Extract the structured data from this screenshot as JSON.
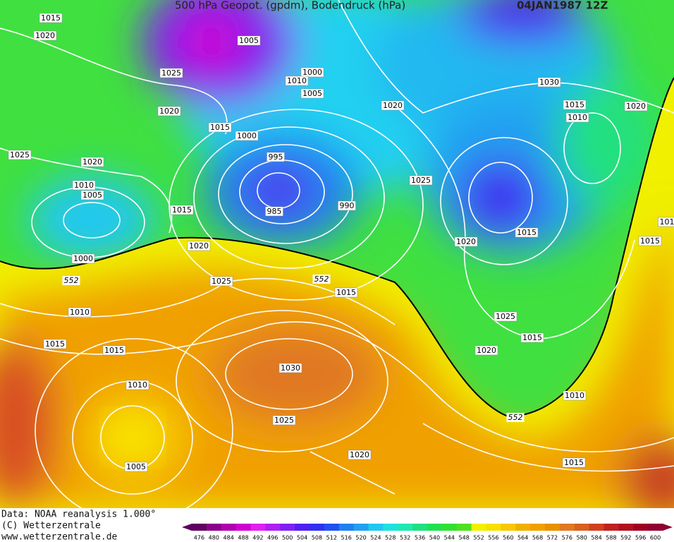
{
  "header": {
    "title": "500 hPa Geopot. (gpdm), Bodendruck (hPa)",
    "date": "04JAN1987 12Z"
  },
  "isobar_labels": [
    "1015",
    "1020",
    "1005",
    "1025",
    "1000",
    "1010",
    "1005",
    "1020",
    "1020",
    "1030",
    "1015",
    "1010",
    "1020",
    "1015",
    "1000",
    "1025",
    "1020",
    "995",
    "1010",
    "1005",
    "1025",
    "985",
    "990",
    "1015",
    "1015",
    "1020",
    "1020",
    "1015",
    "101",
    "1000",
    "1025",
    "1015",
    "1010",
    "1025",
    "1015",
    "1015",
    "1015",
    "1020",
    "1030",
    "1010",
    "1010",
    "1025",
    "1020",
    "1015",
    "1005"
  ],
  "contour_labels": [
    "552",
    "552",
    "552"
  ],
  "footer": [
    "Data: NOAA reanalysis 1.000°",
    "(C) Wetterzentrale",
    "www.wetterzentrale.de"
  ],
  "colorbar": {
    "labels": [
      476,
      480,
      484,
      488,
      492,
      496,
      500,
      504,
      508,
      512,
      516,
      520,
      524,
      528,
      532,
      536,
      540,
      544,
      548,
      552,
      556,
      560,
      564,
      568,
      572,
      576,
      580,
      584,
      588,
      592,
      596,
      600
    ],
    "colors": [
      "#600060",
      "#8a008a",
      "#b000b0",
      "#d000d0",
      "#e020f0",
      "#b020f0",
      "#8020f0",
      "#5020f0",
      "#3030f0",
      "#2050f0",
      "#2080f0",
      "#20a0f0",
      "#20c8f0",
      "#20e0e0",
      "#20e8b0",
      "#20e080",
      "#20e050",
      "#30e030",
      "#50e020",
      "#f0f000",
      "#f8e000",
      "#f8c800",
      "#f0b000",
      "#f0a000",
      "#e89000",
      "#e07820",
      "#d86020",
      "#d04020",
      "#c02020",
      "#b01020",
      "#a00020",
      "#900030"
    ]
  }
}
